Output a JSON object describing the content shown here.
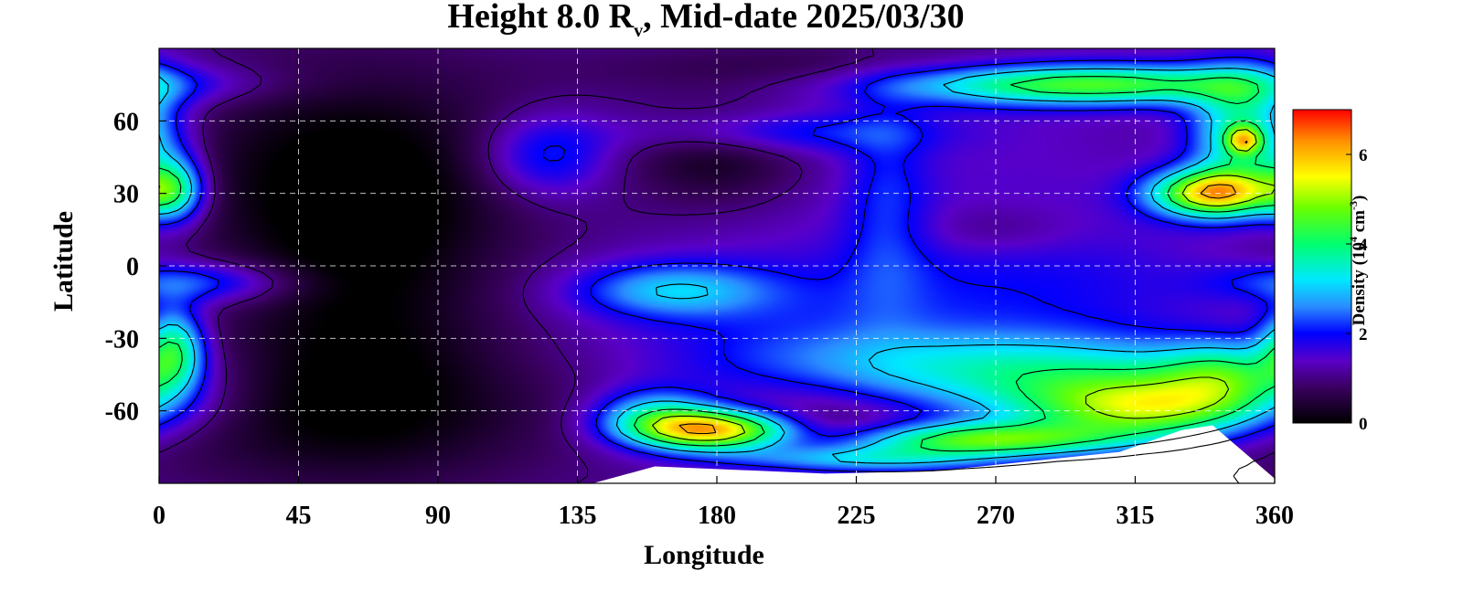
{
  "chart_data": {
    "type": "heatmap",
    "title": {
      "prefix": "Height 8.0 R",
      "subscript": "v",
      "suffix": ", Mid-date 2025/03/30"
    },
    "xlabel": "Longitude",
    "ylabel": "Latitude",
    "xlim": [
      0,
      360
    ],
    "ylim": [
      -90,
      90
    ],
    "xticks": [
      0,
      45,
      90,
      135,
      180,
      225,
      270,
      315,
      360
    ],
    "yticks": [
      60,
      30,
      0,
      -30,
      -60
    ],
    "ytick_labels": [
      "60",
      "30",
      "0",
      "-30",
      "-60"
    ],
    "grid": true,
    "colorbar": {
      "label_prefix": "Density (10",
      "label_exp1": "4",
      "label_mid": " cm",
      "label_exp2": "-3",
      "label_suffix": ")",
      "range": [
        0,
        7
      ],
      "ticks": [
        0,
        2,
        4,
        6
      ],
      "placement": "right",
      "stops": [
        {
          "v": 0.0,
          "color": "#000000"
        },
        {
          "v": 0.8,
          "color": "#3a0060"
        },
        {
          "v": 1.4,
          "color": "#5a00c8"
        },
        {
          "v": 2.0,
          "color": "#0000ff"
        },
        {
          "v": 2.6,
          "color": "#2a8cff"
        },
        {
          "v": 3.2,
          "color": "#00e8ff"
        },
        {
          "v": 4.0,
          "color": "#00ff70"
        },
        {
          "v": 4.8,
          "color": "#6aff00"
        },
        {
          "v": 5.5,
          "color": "#ffff00"
        },
        {
          "v": 6.3,
          "color": "#ff9000"
        },
        {
          "v": 7.0,
          "color": "#ff0000"
        }
      ]
    },
    "contour_levels": [
      1.0,
      2.0,
      3.0,
      4.0,
      5.0,
      6.0
    ],
    "background_density": 1.2,
    "features": [
      {
        "lon": 60,
        "lat": 40,
        "slon": 50,
        "slat": 35,
        "amp": -1.0
      },
      {
        "lon": 60,
        "lat": -60,
        "slon": 55,
        "slat": 25,
        "amp": -1.0
      },
      {
        "lon": 65,
        "lat": -5,
        "slon": 30,
        "slat": 45,
        "amp": -0.8
      },
      {
        "lon": 180,
        "lat": 45,
        "slon": 20,
        "slat": 14,
        "amp": -0.9
      },
      {
        "lon": 210,
        "lat": 82,
        "slon": 50,
        "slat": 8,
        "amp": -0.6
      },
      {
        "lon": 210,
        "lat": -68,
        "slon": 25,
        "slat": 10,
        "amp": -1.0
      },
      {
        "lon": 270,
        "lat": 15,
        "slon": 20,
        "slat": 8,
        "amp": -0.5
      },
      {
        "lon": 280,
        "lat": 10,
        "slon": 50,
        "slat": 40,
        "amp": 0.3
      },
      {
        "lon": 290,
        "lat": -10,
        "slon": 45,
        "slat": 20,
        "amp": 0.4
      },
      {
        "lon": 125,
        "lat": 45,
        "slon": 15,
        "slat": 12,
        "amp": 1.3
      },
      {
        "lon": 200,
        "lat": 55,
        "slon": 35,
        "slat": 6,
        "amp": 1.0
      },
      {
        "lon": 235,
        "lat": 25,
        "slon": 10,
        "slat": 30,
        "amp": 0.8
      },
      {
        "lon": 300,
        "lat": 75,
        "slon": 45,
        "slat": 6,
        "amp": 3.4
      },
      {
        "lon": 350,
        "lat": 55,
        "slon": 12,
        "slat": 18,
        "amp": 2.8
      },
      {
        "lon": 350,
        "lat": 52,
        "slon": 4,
        "slat": 4,
        "amp": 2.5
      },
      {
        "lon": 340,
        "lat": 30,
        "slon": 14,
        "slat": 7,
        "amp": 4.5
      },
      {
        "lon": 5,
        "lat": 32,
        "slon": 7,
        "slat": 10,
        "amp": 2.4
      },
      {
        "lon": 5,
        "lat": -34,
        "slon": 7,
        "slat": 12,
        "amp": 2.6
      },
      {
        "lon": 12,
        "lat": -7,
        "slon": 22,
        "slat": 6,
        "amp": 1.4
      },
      {
        "lon": 165,
        "lat": -10,
        "slon": 22,
        "slat": 8,
        "amp": 1.6
      },
      {
        "lon": 205,
        "lat": -20,
        "slon": 45,
        "slat": 18,
        "amp": 0.6
      },
      {
        "lon": 240,
        "lat": -40,
        "slon": 50,
        "slat": 10,
        "amp": 0.9
      },
      {
        "lon": 300,
        "lat": -48,
        "slon": 45,
        "slat": 12,
        "amp": 2.0
      },
      {
        "lon": 320,
        "lat": -60,
        "slon": 28,
        "slat": 9,
        "amp": 3.0
      },
      {
        "lon": 345,
        "lat": -45,
        "slon": 15,
        "slat": 10,
        "amp": 2.0
      },
      {
        "lon": 180,
        "lat": -68,
        "slon": 18,
        "slat": 6,
        "amp": 4.8
      },
      {
        "lon": 160,
        "lat": -62,
        "slon": 14,
        "slat": 8,
        "amp": 2.0
      },
      {
        "lon": 265,
        "lat": -72,
        "slon": 32,
        "slat": 5,
        "amp": 3.2
      },
      {
        "lon": 225,
        "lat": -80,
        "slon": 30,
        "slat": 4,
        "amp": 2.0
      }
    ],
    "mask_bottom": [
      {
        "lon": 0,
        "lat": -90
      },
      {
        "lon": 140,
        "lat": -90
      },
      {
        "lon": 160,
        "lat": -83
      },
      {
        "lon": 215,
        "lat": -86
      },
      {
        "lon": 250,
        "lat": -85
      },
      {
        "lon": 310,
        "lat": -77
      },
      {
        "lon": 330,
        "lat": -68
      },
      {
        "lon": 340,
        "lat": -66
      },
      {
        "lon": 360,
        "lat": -88
      }
    ]
  }
}
